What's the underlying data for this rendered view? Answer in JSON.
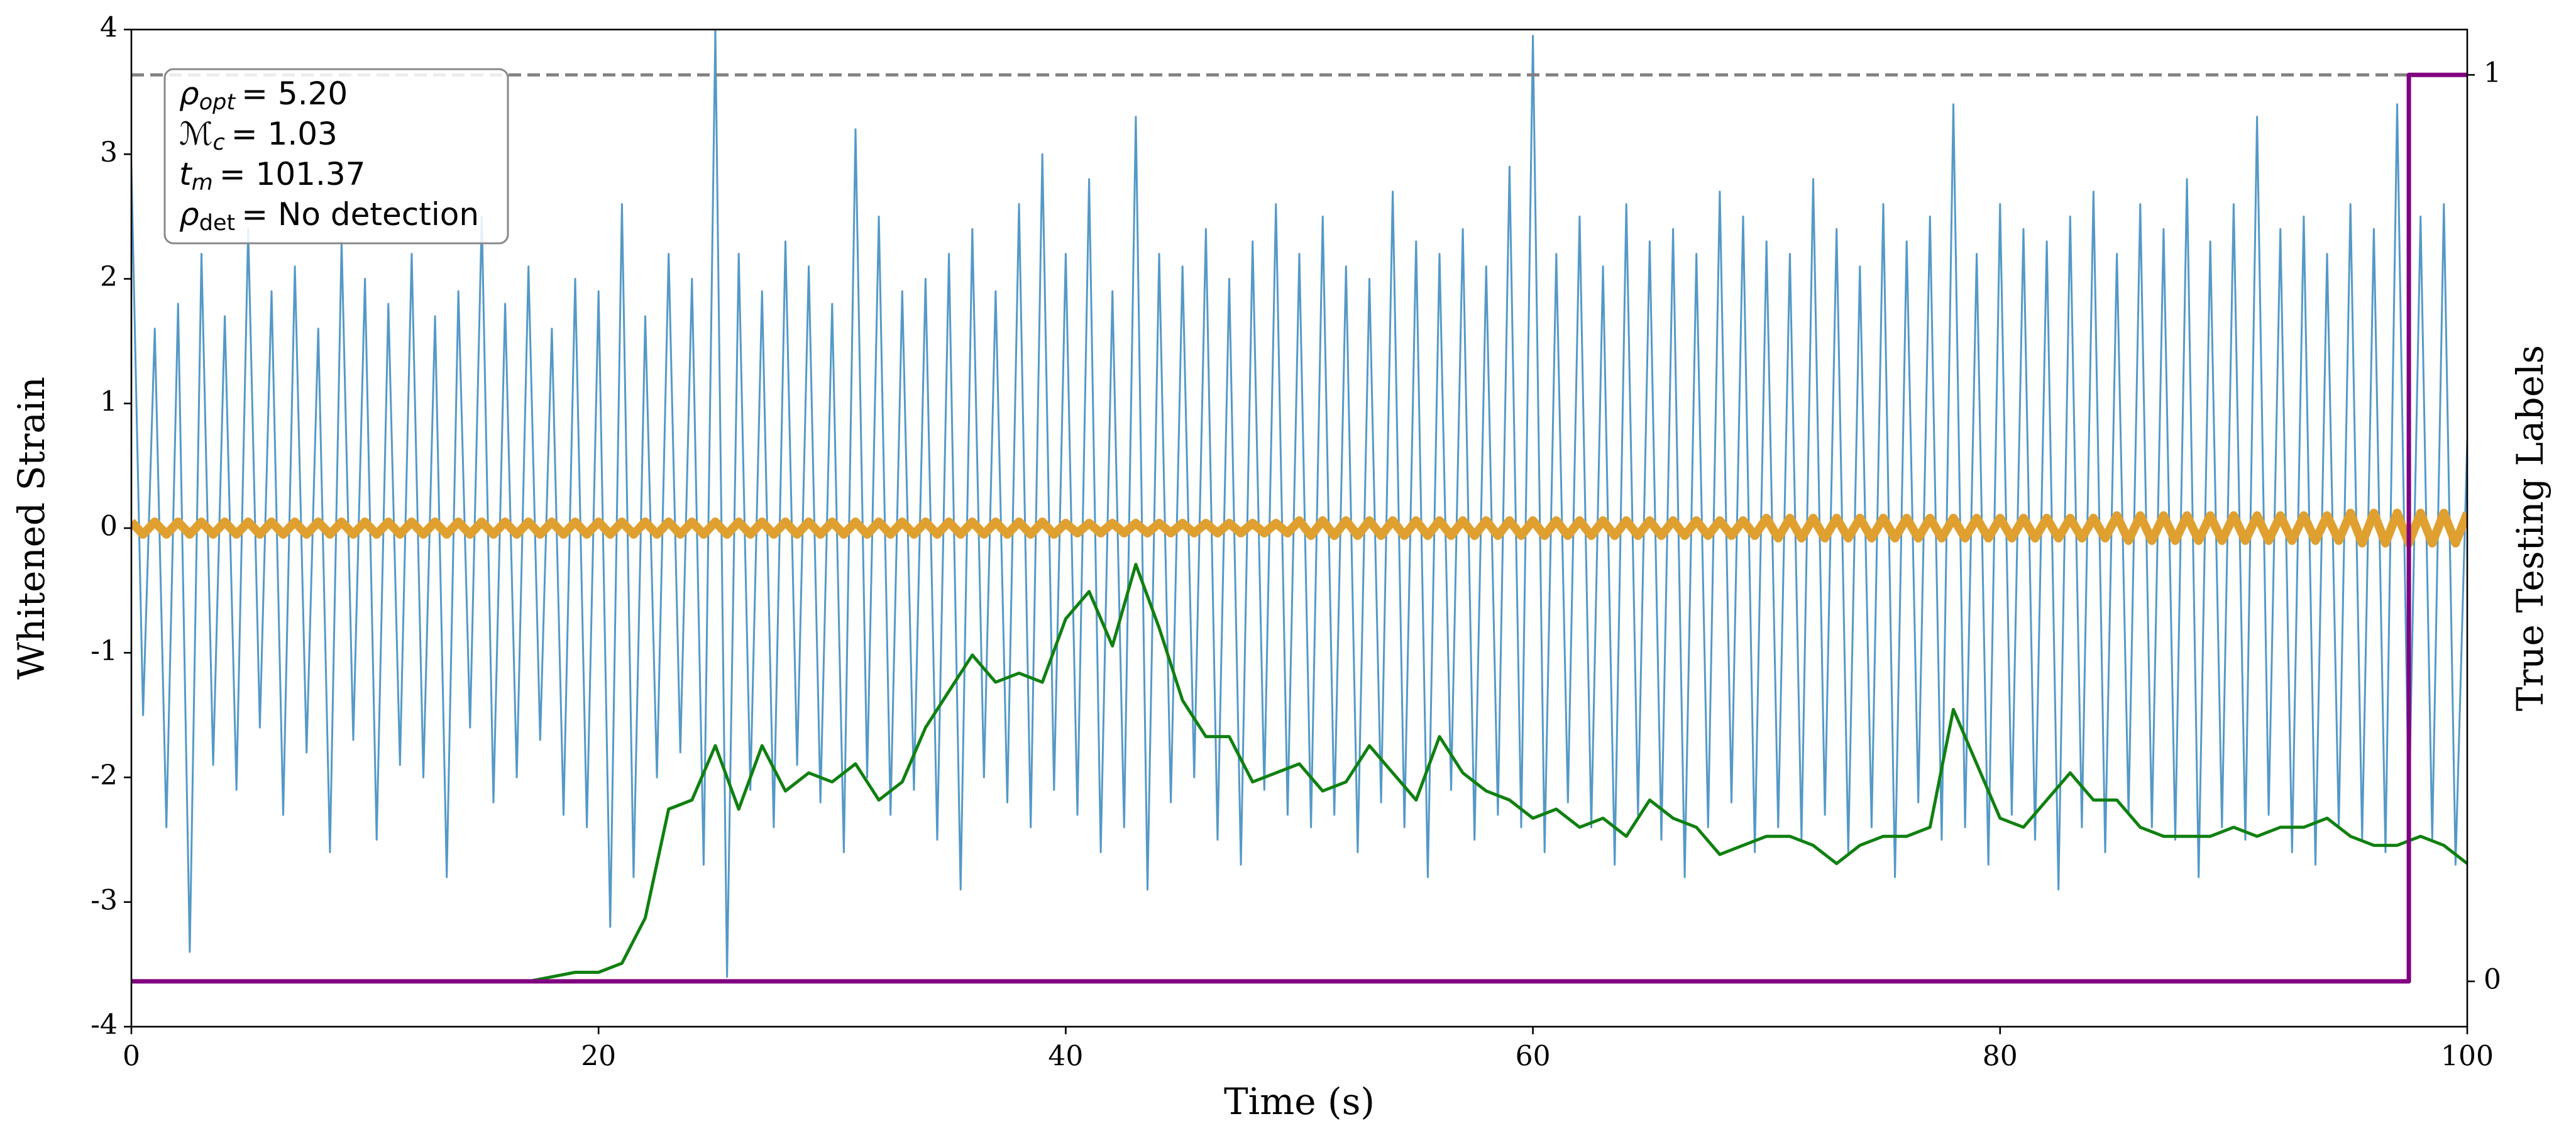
{
  "chart_data": {
    "type": "line",
    "xlabel": "Time (s)",
    "ylabel": "Whitened Strain",
    "y2label": "True Testing Labels",
    "xlim": [
      0,
      100
    ],
    "xticks": [
      0,
      20,
      40,
      60,
      80,
      100
    ],
    "ylim": [
      -4,
      4
    ],
    "yticks": [
      -4,
      -3,
      -2,
      -1,
      0,
      1,
      2,
      3,
      4
    ],
    "y2lim": [
      -0.05,
      1.05
    ],
    "y2ticks": [
      0,
      1
    ],
    "grid": true,
    "reference_line": {
      "axis": "y2",
      "value": 1,
      "color": "#808080",
      "style": "dashed"
    },
    "annotation": {
      "lines": [
        {
          "symbol": "ρ",
          "sub": "opt",
          "text": "= 5.20"
        },
        {
          "symbol": "ℳ",
          "sub": "c",
          "text": "= 1.03"
        },
        {
          "symbol": "t",
          "sub": "m",
          "text": "= 101.37"
        },
        {
          "symbol": "ρ",
          "sub": "det",
          "text": "= No detection"
        }
      ]
    },
    "x": [
      0,
      0.5,
      1,
      1.5,
      2,
      2.5,
      3,
      3.5,
      4,
      4.5,
      5,
      5.5,
      6,
      6.5,
      7,
      7.5,
      8,
      8.5,
      9,
      9.5,
      10,
      10.5,
      11,
      11.5,
      12,
      12.5,
      13,
      13.5,
      14,
      14.5,
      15,
      15.5,
      16,
      16.5,
      17,
      17.5,
      18,
      18.5,
      19,
      19.5,
      20,
      20.5,
      21,
      21.5,
      22,
      22.5,
      23,
      23.5,
      24,
      24.5,
      25,
      25.5,
      26,
      26.5,
      27,
      27.5,
      28,
      28.5,
      29,
      29.5,
      30,
      30.5,
      31,
      31.5,
      32,
      32.5,
      33,
      33.5,
      34,
      34.5,
      35,
      35.5,
      36,
      36.5,
      37,
      37.5,
      38,
      38.5,
      39,
      39.5,
      40,
      40.5,
      41,
      41.5,
      42,
      42.5,
      43,
      43.5,
      44,
      44.5,
      45,
      45.5,
      46,
      46.5,
      47,
      47.5,
      48,
      48.5,
      49,
      49.5,
      50,
      50.5,
      51,
      51.5,
      52,
      52.5,
      53,
      53.5,
      54,
      54.5,
      55,
      55.5,
      56,
      56.5,
      57,
      57.5,
      58,
      58.5,
      59,
      59.5,
      60,
      60.5,
      61,
      61.5,
      62,
      62.5,
      63,
      63.5,
      64,
      64.5,
      65,
      65.5,
      66,
      66.5,
      67,
      67.5,
      68,
      68.5,
      69,
      69.5,
      70,
      70.5,
      71,
      71.5,
      72,
      72.5,
      73,
      73.5,
      74,
      74.5,
      75,
      75.5,
      76,
      76.5,
      77,
      77.5,
      78,
      78.5,
      79,
      79.5,
      80,
      80.5,
      81,
      81.5,
      82,
      82.5,
      83,
      83.5,
      84,
      84.5,
      85,
      85.5,
      86,
      86.5,
      87,
      87.5,
      88,
      88.5,
      89,
      89.5,
      90,
      90.5,
      91,
      91.5,
      92,
      92.5,
      93,
      93.5,
      94,
      94.5,
      95,
      95.5,
      96,
      96.5,
      97,
      97.5,
      98,
      98.5,
      99,
      99.5,
      100
    ],
    "series": [
      {
        "color": "#5499c7",
        "width": 3,
        "values": [
          2.9,
          -1.5,
          1.6,
          -2.4,
          1.8,
          -3.4,
          2.2,
          -1.9,
          1.7,
          -2.1,
          2.4,
          -1.6,
          1.9,
          -2.3,
          2.1,
          -1.8,
          1.6,
          -2.6,
          2.3,
          -1.7,
          2.0,
          -2.5,
          1.8,
          -1.9,
          2.2,
          -2.0,
          1.7,
          -2.8,
          1.9,
          -1.6,
          2.5,
          -2.2,
          1.8,
          -2.0,
          2.1,
          -1.7,
          1.6,
          -2.3,
          2.0,
          -2.4,
          1.9,
          -3.2,
          2.6,
          -2.8,
          1.7,
          -2.0,
          2.2,
          -1.8,
          2.0,
          -2.7,
          4.0,
          -3.6,
          2.2,
          -2.1,
          1.9,
          -2.4,
          2.3,
          -1.9,
          2.1,
          -2.2,
          1.8,
          -2.6,
          3.2,
          -2.0,
          2.5,
          -2.3,
          1.9,
          -2.1,
          2.0,
          -2.5,
          2.2,
          -2.9,
          2.4,
          -2.0,
          1.9,
          -2.2,
          2.6,
          -2.4,
          3.0,
          -2.1,
          2.2,
          -2.3,
          2.8,
          -2.6,
          1.9,
          -2.4,
          3.3,
          -2.9,
          2.2,
          -2.2,
          2.1,
          -2.0,
          2.4,
          -2.5,
          2.0,
          -2.7,
          2.3,
          -2.1,
          2.6,
          -2.3,
          2.2,
          -2.4,
          2.5,
          -2.3,
          2.1,
          -2.6,
          2.0,
          -2.2,
          2.7,
          -2.4,
          2.3,
          -2.8,
          2.2,
          -2.1,
          2.4,
          -2.5,
          2.1,
          -2.3,
          2.9,
          -2.4,
          3.95,
          -2.6,
          2.2,
          -2.2,
          2.5,
          -2.4,
          2.1,
          -2.7,
          2.6,
          -2.3,
          2.3,
          -2.5,
          2.4,
          -2.8,
          2.2,
          -2.4,
          2.7,
          -2.2,
          2.5,
          -2.6,
          2.3,
          -2.4,
          2.2,
          -2.5,
          2.8,
          -2.3,
          2.4,
          -2.6,
          2.1,
          -2.4,
          2.6,
          -2.8,
          2.3,
          -2.2,
          2.5,
          -2.5,
          3.4,
          -2.4,
          2.2,
          -2.7,
          2.6,
          -2.3,
          2.4,
          -2.5,
          2.3,
          -2.9,
          2.5,
          -2.4,
          2.7,
          -2.6,
          2.2,
          -2.3,
          2.6,
          -2.4,
          2.4,
          -2.5,
          2.8,
          -2.8,
          2.3,
          -2.4,
          2.6,
          -2.5,
          3.3,
          -2.3,
          2.4,
          -2.6,
          2.5,
          -2.7,
          2.2,
          -2.4,
          2.6,
          -2.5,
          2.4,
          -2.6,
          3.4,
          -2.3,
          2.5,
          -2.5,
          2.6,
          -2.7,
          0.7
        ]
      },
      {
        "color": "#e0a030",
        "width": 14,
        "values": [
          0.05,
          -0.05,
          0.05,
          -0.05,
          0.05,
          -0.05,
          0.05,
          -0.05,
          0.05,
          -0.05,
          0.05,
          -0.05,
          0.05,
          -0.05,
          0.05,
          -0.05,
          0.05,
          -0.05,
          0.05,
          -0.05,
          0.05,
          -0.05,
          0.05,
          -0.05,
          0.05,
          -0.05,
          0.05,
          -0.05,
          0.05,
          -0.05,
          0.05,
          -0.05,
          0.05,
          -0.05,
          0.05,
          -0.05,
          0.05,
          -0.05,
          0.05,
          -0.05,
          0.05,
          -0.05,
          0.05,
          -0.05,
          0.05,
          -0.05,
          0.05,
          -0.05,
          0.05,
          -0.05,
          0.05,
          -0.05,
          0.05,
          -0.05,
          0.05,
          -0.05,
          0.05,
          -0.05,
          0.05,
          -0.05,
          0.05,
          -0.05,
          0.05,
          -0.05,
          0.05,
          -0.05,
          0.05,
          -0.05,
          0.05,
          -0.05,
          0.05,
          -0.05,
          0.05,
          -0.05,
          0.05,
          -0.05,
          0.05,
          -0.05,
          0.05,
          -0.05,
          0.04,
          -0.04,
          0.04,
          -0.04,
          0.04,
          -0.04,
          0.04,
          -0.04,
          0.04,
          -0.04,
          0.04,
          -0.04,
          0.04,
          -0.04,
          0.04,
          -0.04,
          0.04,
          -0.04,
          0.04,
          -0.04,
          0.06,
          -0.06,
          0.06,
          -0.06,
          0.06,
          -0.06,
          0.06,
          -0.06,
          0.06,
          -0.06,
          0.06,
          -0.06,
          0.06,
          -0.06,
          0.06,
          -0.06,
          0.06,
          -0.06,
          0.06,
          -0.06,
          0.06,
          -0.06,
          0.06,
          -0.06,
          0.06,
          -0.06,
          0.06,
          -0.06,
          0.06,
          -0.06,
          0.06,
          -0.06,
          0.06,
          -0.06,
          0.06,
          -0.06,
          0.06,
          -0.06,
          0.06,
          -0.06,
          0.08,
          -0.08,
          0.08,
          -0.08,
          0.08,
          -0.08,
          0.08,
          -0.08,
          0.08,
          -0.08,
          0.08,
          -0.08,
          0.08,
          -0.08,
          0.08,
          -0.08,
          0.08,
          -0.08,
          0.08,
          -0.08,
          0.08,
          -0.08,
          0.08,
          -0.08,
          0.08,
          -0.08,
          0.08,
          -0.08,
          0.08,
          -0.08,
          0.1,
          -0.1,
          0.1,
          -0.1,
          0.1,
          -0.1,
          0.1,
          -0.1,
          0.1,
          -0.1,
          0.1,
          -0.1,
          0.1,
          -0.1,
          0.1,
          -0.1,
          0.1,
          -0.1,
          0.1,
          -0.1,
          0.12,
          -0.12,
          0.12,
          -0.12,
          0.12,
          -0.12,
          0.12,
          -0.12,
          0.12,
          -0.12,
          0.12
        ]
      },
      {
        "color": "#108010",
        "width": 5,
        "axis": "y2",
        "x": [
          0,
          1,
          2,
          3,
          4,
          5,
          6,
          7,
          8,
          9,
          10,
          11,
          12,
          13,
          14,
          15,
          16,
          17,
          18,
          19,
          20,
          21,
          22,
          23,
          24,
          25,
          26,
          27,
          28,
          29,
          30,
          31,
          32,
          33,
          34,
          35,
          36,
          37,
          38,
          39,
          40,
          41,
          42,
          43,
          44,
          45,
          46,
          47,
          48,
          49,
          50,
          51,
          52,
          53,
          54,
          55,
          56,
          57,
          58,
          59,
          60,
          61,
          62,
          63,
          64,
          65,
          66,
          67,
          68,
          69,
          70,
          71,
          72,
          73,
          74,
          75,
          76,
          77,
          78,
          79,
          80,
          81,
          82,
          83,
          84,
          85,
          86,
          87,
          88,
          89,
          90,
          91,
          92,
          93,
          94,
          95,
          96,
          97,
          98,
          99,
          100
        ],
        "values": [
          0,
          0,
          0,
          0,
          0,
          0,
          0,
          0,
          0,
          0,
          0,
          0,
          0,
          0,
          0,
          0,
          0,
          0,
          0.005,
          0.01,
          0.01,
          0.02,
          0.07,
          0.19,
          0.2,
          0.26,
          0.19,
          0.26,
          0.21,
          0.23,
          0.22,
          0.24,
          0.2,
          0.22,
          0.28,
          0.32,
          0.36,
          0.33,
          0.34,
          0.33,
          0.4,
          0.43,
          0.37,
          0.46,
          0.39,
          0.31,
          0.27,
          0.27,
          0.22,
          0.23,
          0.24,
          0.21,
          0.22,
          0.26,
          0.23,
          0.2,
          0.27,
          0.23,
          0.21,
          0.2,
          0.18,
          0.19,
          0.17,
          0.18,
          0.16,
          0.2,
          0.18,
          0.17,
          0.14,
          0.15,
          0.16,
          0.16,
          0.15,
          0.13,
          0.15,
          0.16,
          0.16,
          0.17,
          0.3,
          0.24,
          0.18,
          0.17,
          0.2,
          0.23,
          0.2,
          0.2,
          0.17,
          0.16,
          0.16,
          0.16,
          0.17,
          0.16,
          0.17,
          0.17,
          0.18,
          0.16,
          0.15,
          0.15,
          0.16,
          0.15,
          0.13
        ]
      },
      {
        "color": "#800080",
        "width": 7,
        "axis": "y2",
        "x": [
          0,
          97.5,
          97.5,
          100
        ],
        "values": [
          0,
          0,
          1,
          1
        ]
      }
    ]
  }
}
